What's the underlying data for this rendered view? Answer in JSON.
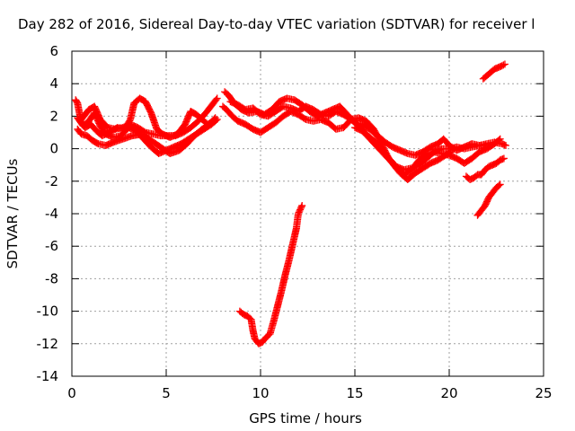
{
  "chart_data": {
    "type": "scatter",
    "title": "Day 282 of 2016, Sidereal Day-to-day VTEC variation (SDTVAR) for receiver l",
    "xlabel": "GPS time / hours",
    "ylabel": "SDTVAR / TECUs",
    "xlim": [
      0,
      25
    ],
    "ylim": [
      -14,
      6
    ],
    "xticks": [
      0,
      5,
      10,
      15,
      20,
      25
    ],
    "yticks": [
      -14,
      -12,
      -10,
      -8,
      -6,
      -4,
      -2,
      0,
      2,
      4,
      6
    ],
    "grid": true,
    "marker": "+",
    "color": "#ff0000",
    "series": [
      {
        "points": [
          [
            0.2,
            3.0
          ],
          [
            0.3,
            2.8
          ],
          [
            0.4,
            2.2
          ],
          [
            0.5,
            1.6
          ],
          [
            0.7,
            1.3
          ],
          [
            1.0,
            1.5
          ],
          [
            1.3,
            1.1
          ],
          [
            1.6,
            0.8
          ],
          [
            2.0,
            1.0
          ],
          [
            2.4,
            1.3
          ],
          [
            2.8,
            1.2
          ],
          [
            3.1,
            1.8
          ],
          [
            3.3,
            2.8
          ],
          [
            3.6,
            3.1
          ],
          [
            3.9,
            2.9
          ],
          [
            4.2,
            2.2
          ],
          [
            4.5,
            1.2
          ],
          [
            4.8,
            0.9
          ],
          [
            5.2,
            0.7
          ],
          [
            5.6,
            0.9
          ],
          [
            6.0,
            1.5
          ],
          [
            6.3,
            2.3
          ],
          [
            6.6,
            2.1
          ],
          [
            6.9,
            1.8
          ],
          [
            7.2,
            1.5
          ],
          [
            7.5,
            1.7
          ]
        ]
      },
      {
        "points": [
          [
            0.3,
            1.9
          ],
          [
            0.6,
            1.4
          ],
          [
            0.9,
            1.7
          ],
          [
            1.2,
            2.2
          ],
          [
            1.5,
            1.4
          ],
          [
            1.8,
            0.9
          ],
          [
            2.2,
            0.7
          ],
          [
            2.6,
            0.8
          ],
          [
            3.0,
            1.3
          ],
          [
            3.4,
            1.1
          ],
          [
            3.8,
            0.6
          ],
          [
            4.2,
            0.1
          ],
          [
            4.6,
            -0.3
          ],
          [
            5.0,
            -0.1
          ],
          [
            5.4,
            0.1
          ],
          [
            5.8,
            0.3
          ],
          [
            6.2,
            0.6
          ],
          [
            6.6,
            0.9
          ],
          [
            7.0,
            1.2
          ],
          [
            7.4,
            1.5
          ],
          [
            7.7,
            1.8
          ]
        ]
      },
      {
        "points": [
          [
            0.3,
            1.2
          ],
          [
            0.5,
            0.9
          ],
          [
            0.8,
            0.8
          ],
          [
            1.1,
            0.5
          ],
          [
            1.4,
            0.3
          ],
          [
            1.8,
            0.2
          ],
          [
            2.2,
            0.4
          ],
          [
            2.7,
            0.6
          ],
          [
            3.2,
            0.8
          ],
          [
            3.7,
            0.9
          ],
          [
            4.2,
            0.5
          ],
          [
            4.7,
            0.1
          ],
          [
            5.2,
            -0.3
          ],
          [
            5.7,
            -0.1
          ],
          [
            6.1,
            0.3
          ],
          [
            6.5,
            0.8
          ],
          [
            6.9,
            1.2
          ],
          [
            7.3,
            1.5
          ],
          [
            7.6,
            1.9
          ]
        ]
      },
      {
        "points": [
          [
            0.5,
            1.8
          ],
          [
            0.9,
            2.4
          ],
          [
            1.2,
            2.6
          ],
          [
            1.5,
            1.8
          ],
          [
            1.9,
            1.3
          ],
          [
            2.3,
            1.2
          ],
          [
            2.7,
            1.3
          ],
          [
            3.1,
            1.5
          ],
          [
            3.5,
            1.3
          ],
          [
            3.9,
            1.0
          ],
          [
            4.3,
            0.9
          ],
          [
            4.7,
            0.8
          ],
          [
            5.1,
            0.8
          ],
          [
            5.5,
            0.8
          ],
          [
            5.9,
            1.0
          ],
          [
            6.3,
            1.3
          ],
          [
            6.7,
            1.7
          ],
          [
            7.1,
            2.2
          ],
          [
            7.5,
            2.8
          ],
          [
            7.7,
            3.1
          ]
        ]
      },
      {
        "points": [
          [
            8.1,
            3.5
          ],
          [
            8.3,
            3.3
          ],
          [
            8.6,
            2.8
          ],
          [
            9.0,
            2.4
          ],
          [
            9.4,
            2.2
          ],
          [
            9.8,
            2.3
          ],
          [
            10.2,
            2.1
          ],
          [
            10.6,
            2.4
          ],
          [
            11.0,
            2.9
          ],
          [
            11.4,
            3.1
          ],
          [
            11.8,
            3.0
          ],
          [
            12.2,
            2.7
          ],
          [
            12.6,
            2.3
          ],
          [
            13.0,
            2.0
          ],
          [
            13.4,
            2.2
          ],
          [
            13.8,
            2.4
          ],
          [
            14.2,
            2.6
          ],
          [
            14.6,
            2.1
          ],
          [
            15.0,
            1.6
          ],
          [
            15.4,
            1.5
          ],
          [
            15.8,
            1.2
          ],
          [
            16.2,
            0.8
          ],
          [
            16.6,
            0.4
          ],
          [
            17.0,
            0.1
          ],
          [
            17.4,
            -0.1
          ],
          [
            17.8,
            -0.3
          ],
          [
            18.2,
            -0.4
          ],
          [
            18.6,
            -0.2
          ],
          [
            19.0,
            0.1
          ],
          [
            19.4,
            0.3
          ],
          [
            19.7,
            0.6
          ],
          [
            20.0,
            0.2
          ],
          [
            20.4,
            -0.1
          ],
          [
            20.8,
            0.1
          ],
          [
            21.2,
            0.3
          ],
          [
            21.6,
            0.2
          ],
          [
            22.0,
            0.3
          ],
          [
            22.4,
            0.4
          ],
          [
            22.8,
            0.3
          ],
          [
            23.0,
            0.2
          ]
        ]
      },
      {
        "points": [
          [
            8.0,
            2.6
          ],
          [
            8.2,
            2.4
          ],
          [
            8.5,
            2.0
          ],
          [
            8.8,
            1.7
          ],
          [
            9.2,
            1.5
          ],
          [
            9.6,
            1.2
          ],
          [
            10.0,
            1.0
          ],
          [
            10.4,
            1.3
          ],
          [
            10.8,
            1.6
          ],
          [
            11.2,
            2.0
          ],
          [
            11.6,
            2.3
          ],
          [
            12.0,
            2.1
          ],
          [
            12.4,
            1.8
          ],
          [
            12.8,
            1.7
          ],
          [
            13.2,
            1.8
          ],
          [
            13.6,
            1.6
          ],
          [
            14.0,
            1.2
          ],
          [
            14.4,
            1.3
          ],
          [
            14.8,
            1.8
          ],
          [
            15.2,
            1.9
          ],
          [
            15.6,
            1.7
          ],
          [
            16.0,
            1.2
          ],
          [
            16.4,
            0.3
          ],
          [
            16.8,
            -0.6
          ],
          [
            17.2,
            -1.1
          ],
          [
            17.6,
            -1.3
          ],
          [
            18.0,
            -1.2
          ],
          [
            18.4,
            -1.0
          ],
          [
            18.8,
            -0.6
          ],
          [
            19.2,
            -0.2
          ],
          [
            19.6,
            0.0
          ],
          [
            20.0,
            0.0
          ],
          [
            20.4,
            0.1
          ],
          [
            20.8,
            0.0
          ],
          [
            21.2,
            0.1
          ],
          [
            21.6,
            0.2
          ],
          [
            22.0,
            0.2
          ]
        ]
      },
      {
        "points": [
          [
            8.4,
            2.9
          ],
          [
            8.8,
            2.7
          ],
          [
            9.2,
            2.4
          ],
          [
            9.6,
            2.5
          ],
          [
            10.0,
            2.1
          ],
          [
            10.4,
            2.0
          ],
          [
            10.8,
            2.3
          ],
          [
            11.2,
            2.6
          ],
          [
            11.6,
            2.5
          ],
          [
            12.0,
            2.3
          ],
          [
            12.4,
            2.6
          ],
          [
            12.8,
            2.4
          ],
          [
            13.2,
            2.1
          ],
          [
            13.6,
            2.0
          ],
          [
            14.0,
            2.3
          ],
          [
            14.4,
            2.1
          ],
          [
            14.8,
            1.8
          ],
          [
            15.2,
            1.4
          ],
          [
            15.6,
            0.9
          ],
          [
            16.0,
            0.5
          ],
          [
            16.4,
            0.0
          ],
          [
            16.8,
            -0.6
          ],
          [
            17.2,
            -1.2
          ],
          [
            17.6,
            -1.6
          ],
          [
            18.0,
            -1.3
          ],
          [
            18.4,
            -0.7
          ],
          [
            18.8,
            -0.3
          ],
          [
            19.2,
            -0.2
          ],
          [
            19.6,
            -0.3
          ],
          [
            20.0,
            -0.4
          ],
          [
            20.4,
            -0.6
          ],
          [
            20.8,
            -0.9
          ],
          [
            21.2,
            -0.6
          ],
          [
            21.6,
            -0.2
          ],
          [
            22.0,
            0.0
          ],
          [
            22.4,
            0.3
          ],
          [
            22.7,
            0.6
          ]
        ]
      },
      {
        "points": [
          [
            15.0,
            1.3
          ],
          [
            15.4,
            1.1
          ],
          [
            15.8,
            0.6
          ],
          [
            16.2,
            0.1
          ],
          [
            16.6,
            -0.4
          ],
          [
            17.0,
            -0.9
          ],
          [
            17.4,
            -1.5
          ],
          [
            17.8,
            -1.9
          ],
          [
            18.2,
            -1.5
          ],
          [
            18.6,
            -1.2
          ],
          [
            19.0,
            -0.9
          ],
          [
            19.4,
            -0.7
          ],
          [
            19.8,
            -0.4
          ],
          [
            20.1,
            -0.2
          ]
        ]
      },
      {
        "points": [
          [
            8.9,
            -10.0
          ],
          [
            9.1,
            -10.2
          ],
          [
            9.3,
            -10.3
          ],
          [
            9.5,
            -10.5
          ],
          [
            9.6,
            -11.2
          ],
          [
            9.7,
            -11.7
          ],
          [
            9.9,
            -12.0
          ],
          [
            10.1,
            -11.9
          ],
          [
            10.3,
            -11.6
          ],
          [
            10.5,
            -11.4
          ],
          [
            10.7,
            -10.6
          ],
          [
            10.9,
            -9.7
          ],
          [
            11.1,
            -8.8
          ],
          [
            11.3,
            -7.8
          ],
          [
            11.5,
            -6.9
          ],
          [
            11.7,
            -5.9
          ],
          [
            11.9,
            -4.9
          ],
          [
            12.0,
            -4.0
          ],
          [
            12.2,
            -3.5
          ]
        ]
      },
      {
        "points": [
          [
            20.9,
            -1.7
          ],
          [
            21.1,
            -1.9
          ],
          [
            21.3,
            -1.8
          ],
          [
            21.5,
            -1.6
          ],
          [
            21.7,
            -1.6
          ],
          [
            21.9,
            -1.3
          ],
          [
            22.1,
            -1.1
          ],
          [
            22.3,
            -1.0
          ],
          [
            22.5,
            -0.9
          ],
          [
            22.7,
            -0.7
          ],
          [
            22.9,
            -0.6
          ]
        ]
      },
      {
        "points": [
          [
            21.5,
            -4.1
          ],
          [
            21.7,
            -3.8
          ],
          [
            21.9,
            -3.5
          ],
          [
            22.1,
            -3.0
          ],
          [
            22.3,
            -2.7
          ],
          [
            22.5,
            -2.4
          ],
          [
            22.7,
            -2.2
          ]
        ]
      },
      {
        "points": [
          [
            21.8,
            4.3
          ],
          [
            22.0,
            4.5
          ],
          [
            22.2,
            4.7
          ],
          [
            22.4,
            4.9
          ],
          [
            22.6,
            5.0
          ],
          [
            22.8,
            5.1
          ],
          [
            22.95,
            5.2
          ]
        ]
      }
    ]
  }
}
